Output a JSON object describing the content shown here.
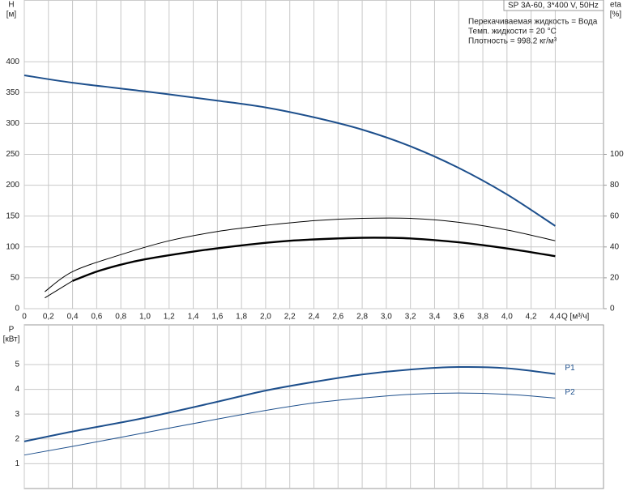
{
  "chart_data": [
    {
      "type": "line",
      "ylabel": "H",
      "yunit": "[м]",
      "y2label": "eta",
      "y2unit": "[%]",
      "xlabel": "Q [м³/ч]",
      "title": "SP 3A-60, 3*400 V, 50Hz",
      "annotations": [
        "Перекачиваемая жидкость = Вода",
        "Темп. жидкости = 20 °C",
        "Плотность = 998.2 кг/м³"
      ],
      "xlim": [
        0,
        4.8
      ],
      "ylim": [
        0,
        500
      ],
      "y2lim": [
        0,
        200
      ],
      "xticks": [
        0,
        {
          "value": 0.2,
          "label": "0,2"
        },
        {
          "value": 0.4,
          "label": "0,4"
        },
        {
          "value": 0.6,
          "label": "0,6"
        },
        {
          "value": 0.8,
          "label": "0,8"
        },
        {
          "value": 1.0,
          "label": "1,0"
        },
        {
          "value": 1.2,
          "label": "1,2"
        },
        {
          "value": 1.4,
          "label": "1,4"
        },
        {
          "value": 1.6,
          "label": "1,6"
        },
        {
          "value": 1.8,
          "label": "1,8"
        },
        {
          "value": 2.0,
          "label": "2,0"
        },
        {
          "value": 2.2,
          "label": "2,2"
        },
        {
          "value": 2.4,
          "label": "2,4"
        },
        {
          "value": 2.6,
          "label": "2,6"
        },
        {
          "value": 2.8,
          "label": "2,8"
        },
        {
          "value": 3.0,
          "label": "3,0"
        },
        {
          "value": 3.2,
          "label": "3,2"
        },
        {
          "value": 3.4,
          "label": "3,4"
        },
        {
          "value": 3.6,
          "label": "3,6"
        },
        {
          "value": 3.8,
          "label": "3,8"
        },
        {
          "value": 4.0,
          "label": "4,0"
        },
        {
          "value": 4.2,
          "label": "4,2"
        },
        {
          "value": 4.4,
          "label": "4,4"
        }
      ],
      "yticks": [
        0,
        50,
        100,
        150,
        200,
        250,
        300,
        350,
        400
      ],
      "y2ticks": [
        0,
        20,
        40,
        60,
        80,
        100
      ],
      "grid": true,
      "series": [
        {
          "color": "#1d4f8c",
          "width": 2,
          "x": [
            0,
            0.4,
            1.0,
            1.6,
            2.0,
            2.4,
            2.8,
            3.2,
            3.6,
            4.0,
            4.4
          ],
          "values": [
            378,
            366,
            352,
            337,
            326,
            310,
            290,
            263,
            228,
            185,
            134
          ]
        },
        {
          "color": "#000000",
          "width": 2.4,
          "axis": "y2",
          "x": [
            0.4,
            0.6,
            0.8,
            1.0,
            1.4,
            1.8,
            2.2,
            2.6,
            2.9,
            3.2,
            3.6,
            4.0,
            4.4
          ],
          "values": [
            18,
            24,
            28.5,
            32,
            37,
            41,
            44,
            45.5,
            46,
            45.5,
            43,
            39,
            34
          ]
        },
        {
          "color": "#000000",
          "width": 1,
          "axis": "y2",
          "x": [
            0.17,
            0.4,
            0.8,
            1.2,
            1.6,
            2.0,
            2.4,
            2.8,
            3.2,
            3.6,
            4.0,
            4.4
          ],
          "values": [
            11,
            24,
            35,
            44,
            50,
            54,
            57,
            58.5,
            58.5,
            56,
            51,
            44
          ]
        },
        {
          "color": "#000000",
          "width": 1,
          "axis": "y2",
          "x": [
            0.17,
            0.4
          ],
          "values": [
            7,
            18
          ]
        }
      ]
    },
    {
      "type": "line",
      "ylabel": "P",
      "yunit": "[кВт]",
      "xlim": [
        0,
        4.8
      ],
      "ylim": [
        0,
        6.6
      ],
      "yticks": [
        1,
        2,
        3,
        4,
        5
      ],
      "grid": true,
      "series": [
        {
          "name": "P1",
          "color": "#1d4f8c",
          "width": 2,
          "x": [
            0,
            0.4,
            1.0,
            1.6,
            2.0,
            2.4,
            2.8,
            3.2,
            3.6,
            4.0,
            4.4
          ],
          "values": [
            1.9,
            2.3,
            2.85,
            3.5,
            3.95,
            4.3,
            4.6,
            4.8,
            4.9,
            4.85,
            4.62
          ]
        },
        {
          "name": "P2",
          "color": "#1d4f8c",
          "width": 1,
          "x": [
            0,
            0.4,
            1.0,
            1.6,
            2.0,
            2.4,
            2.8,
            3.2,
            3.6,
            4.0,
            4.4
          ],
          "values": [
            1.35,
            1.7,
            2.25,
            2.8,
            3.15,
            3.45,
            3.65,
            3.8,
            3.85,
            3.8,
            3.65
          ]
        }
      ]
    }
  ]
}
